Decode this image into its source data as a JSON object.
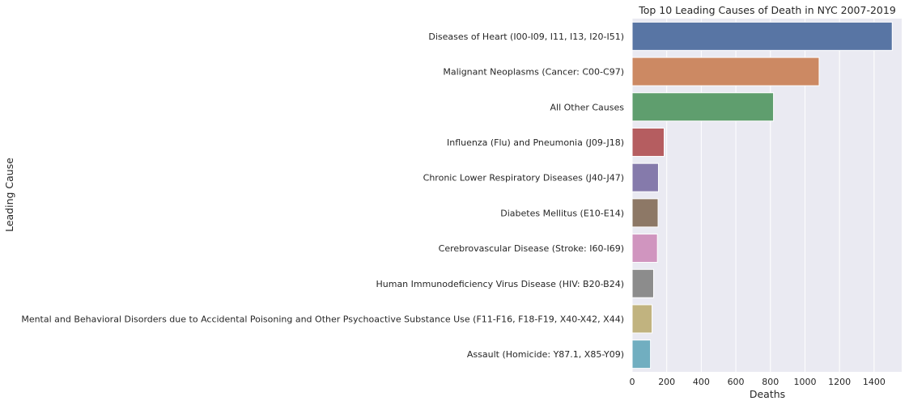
{
  "chart_data": {
    "type": "bar",
    "orientation": "horizontal",
    "title": "Top 10 Leading Causes of Death in NYC 2007-2019",
    "xlabel": "Deaths",
    "ylabel": "Leading Cause",
    "xlim": [
      0,
      1560
    ],
    "xticks": [
      0,
      200,
      400,
      600,
      800,
      1000,
      1200,
      1400
    ],
    "grid": true,
    "background": "#eaeaf2",
    "categories": [
      "Diseases of Heart (I00-I09, I11, I13, I20-I51)",
      "Malignant Neoplasms (Cancer: C00-C97)",
      "All Other Causes",
      "Influenza (Flu) and Pneumonia (J09-J18)",
      "Chronic Lower Respiratory Diseases (J40-J47)",
      "Diabetes Mellitus (E10-E14)",
      "Cerebrovascular Disease (Stroke: I60-I69)",
      "Human Immunodeficiency Virus Disease (HIV: B20-B24)",
      "Mental and Behavioral Disorders due to Accidental Poisoning and Other Psychoactive Substance Use (F11-F16, F18-F19, X40-X42, X44)",
      "Assault (Homicide: Y87.1, X85-Y09)"
    ],
    "values": [
      1505,
      1082,
      818,
      185,
      152,
      150,
      146,
      124,
      115,
      106
    ],
    "colors": [
      "#5875a4",
      "#cc8963",
      "#5f9e6e",
      "#b55d60",
      "#857aab",
      "#8d7866",
      "#d095bf",
      "#8c8c8c",
      "#c1b37f",
      "#71aec0"
    ]
  }
}
